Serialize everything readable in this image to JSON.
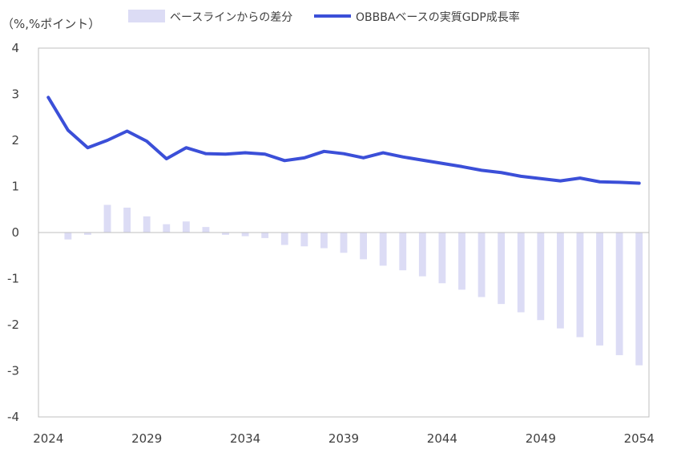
{
  "chart_data": {
    "type": "bar+line",
    "ylabel": "（%,%ポイント）",
    "x": [
      2024,
      2025,
      2026,
      2027,
      2028,
      2029,
      2030,
      2031,
      2032,
      2033,
      2034,
      2035,
      2036,
      2037,
      2038,
      2039,
      2040,
      2041,
      2042,
      2043,
      2044,
      2045,
      2046,
      2047,
      2048,
      2049,
      2050,
      2051,
      2052,
      2053,
      2054
    ],
    "x_tick_labels": [
      "2024",
      "2029",
      "2034",
      "2039",
      "2044",
      "2049",
      "2054"
    ],
    "y_tick_labels": [
      "4",
      "3",
      "2",
      "1",
      "0",
      "-1",
      "-2",
      "-3",
      "-4"
    ],
    "negative_tick_color": "#c00000",
    "ylim": [
      -4,
      4
    ],
    "grid": false,
    "legend_position": "top",
    "series": [
      {
        "name": "ベースラインからの差分",
        "type": "bar",
        "color": "#dcdcf5",
        "values": [
          0.0,
          -0.15,
          -0.05,
          0.6,
          0.54,
          0.35,
          0.18,
          0.24,
          0.12,
          -0.05,
          -0.08,
          -0.12,
          -0.27,
          -0.3,
          -0.34,
          -0.44,
          -0.58,
          -0.72,
          -0.82,
          -0.95,
          -1.1,
          -1.24,
          -1.4,
          -1.55,
          -1.73,
          -1.9,
          -2.08,
          -2.27,
          -2.45,
          -2.66,
          -2.88
        ]
      },
      {
        "name": "OBBBAベースの実質GDP成長率",
        "type": "line",
        "color": "#3b4fd8",
        "values": [
          2.93,
          2.22,
          1.84,
          2.0,
          2.2,
          1.98,
          1.6,
          1.84,
          1.71,
          1.7,
          1.73,
          1.7,
          1.56,
          1.62,
          1.76,
          1.71,
          1.62,
          1.73,
          1.64,
          1.57,
          1.5,
          1.43,
          1.35,
          1.3,
          1.22,
          1.17,
          1.12,
          1.18,
          1.1,
          1.09,
          1.07
        ]
      }
    ]
  }
}
